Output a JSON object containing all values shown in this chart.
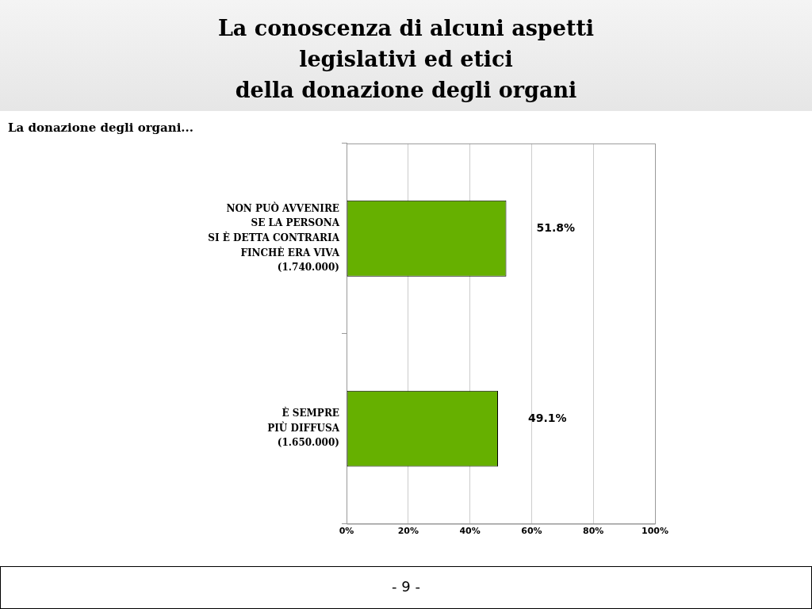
{
  "chart_data": {
    "type": "bar",
    "orientation": "horizontal",
    "title": "La conoscenza di alcuni aspetti\nlegislativi ed etici\ndella donazione degli organi",
    "subtitle": "La donazione degli organi...",
    "categories": [
      "NON PUÒ AVVENIRE\nSE LA PERSONA\nSI È DETTA CONTRARIA\nFINCHÈ ERA VIVA\n(1.740.000)",
      "È SEMPRE\nPIÙ DIFFUSA\n(1.650.000)"
    ],
    "values": [
      51.8,
      49.1
    ],
    "color": "#66b000",
    "value_labels": [
      "51.8%",
      "49.1%"
    ],
    "xlim": [
      0,
      100
    ],
    "xticks": [
      {
        "value": 0,
        "label": "0%"
      },
      {
        "value": 20,
        "label": "20%"
      },
      {
        "value": 40,
        "label": "40%"
      },
      {
        "value": 60,
        "label": "60%"
      },
      {
        "value": 80,
        "label": "80%"
      },
      {
        "value": 100,
        "label": "100%"
      }
    ],
    "grid": "x",
    "legend": false,
    "annotations": [
      "- 9 -"
    ]
  }
}
